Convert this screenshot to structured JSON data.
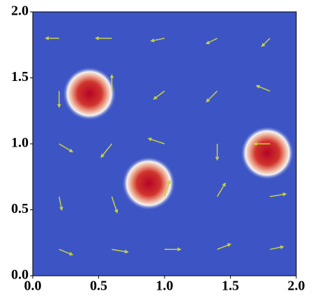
{
  "chart_data": {
    "type": "quiver",
    "xlim": [
      0,
      2
    ],
    "ylim": [
      0,
      2
    ],
    "xticks": [
      {
        "value": 0,
        "label": "0.0"
      },
      0.5,
      {
        "value": 1,
        "label": "1.0"
      },
      1.5,
      {
        "value": 2,
        "label": "2.0"
      }
    ],
    "yticks": [
      {
        "value": 0,
        "label": "0.0"
      },
      0.5,
      {
        "value": 1,
        "label": "1.0"
      },
      1.5,
      {
        "value": 2,
        "label": "2.0"
      }
    ],
    "background_color": "#3d55c4",
    "arrow_color": "#c9d33a",
    "blobs": {
      "x": [
        0.43,
        0.88,
        1.78
      ],
      "y": [
        1.38,
        0.7,
        0.93
      ],
      "radius": [
        0.14,
        0.14,
        0.14
      ]
    },
    "arrows": {
      "x": [
        0.2,
        0.6,
        1.0,
        1.4,
        1.8,
        0.2,
        0.6,
        1.0,
        1.4,
        1.8,
        0.2,
        0.6,
        1.0,
        1.4,
        1.8,
        0.2,
        0.6,
        1.0,
        1.4,
        1.8,
        0.2,
        0.6,
        1.0,
        1.4,
        1.8
      ],
      "y": [
        0.2,
        0.2,
        0.2,
        0.2,
        0.2,
        0.6,
        0.6,
        0.6,
        0.6,
        0.6,
        1.0,
        1.0,
        1.0,
        1.0,
        1.0,
        1.4,
        1.4,
        1.4,
        1.4,
        1.4,
        1.8,
        1.8,
        1.8,
        1.8,
        1.8
      ],
      "u": [
        0.05,
        0.06,
        0.06,
        0.05,
        0.05,
        0.01,
        0.02,
        0.02,
        0.03,
        0.06,
        0.05,
        -0.04,
        -0.06,
        0.0,
        -0.06,
        0.0,
        0.0,
        -0.04,
        -0.04,
        -0.05,
        -0.05,
        -0.06,
        -0.05,
        -0.04,
        -0.03
      ],
      "v": [
        -0.02,
        -0.01,
        0.0,
        0.02,
        0.01,
        -0.05,
        -0.06,
        0.06,
        0.05,
        0.01,
        -0.03,
        -0.05,
        0.02,
        -0.06,
        0.0,
        -0.06,
        0.06,
        -0.03,
        -0.04,
        0.02,
        0.0,
        0.0,
        -0.01,
        -0.02,
        -0.03
      ]
    }
  }
}
